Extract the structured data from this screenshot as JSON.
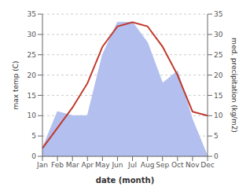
{
  "chart_data": {
    "type": "line",
    "xlabel": "date (month)",
    "ylabel": "max temp (C)",
    "y2label": "med. precipitation (kg/m2)",
    "categories": [
      "Jan",
      "Feb",
      "Mar",
      "Apr",
      "May",
      "Jun",
      "Jul",
      "Aug",
      "Sep",
      "Oct",
      "Nov",
      "Dec"
    ],
    "series": [
      {
        "type": "area",
        "axis": "y2",
        "color": "#b3bfee",
        "values": [
          2,
          11,
          10,
          10,
          25,
          33,
          33,
          28,
          18,
          21,
          9,
          0
        ]
      },
      {
        "type": "line",
        "color": "#c0392b",
        "values": [
          2,
          7,
          12,
          18,
          27,
          32,
          33,
          32,
          27,
          20,
          11,
          10
        ]
      }
    ],
    "ylim": [
      0,
      35
    ],
    "yticks": [
      0,
      5,
      10,
      15,
      20,
      25,
      30,
      35
    ],
    "y2lim": [
      0,
      35
    ],
    "y2ticks": [
      0,
      5,
      10,
      15,
      20,
      25,
      30,
      35
    ],
    "grid": true
  }
}
